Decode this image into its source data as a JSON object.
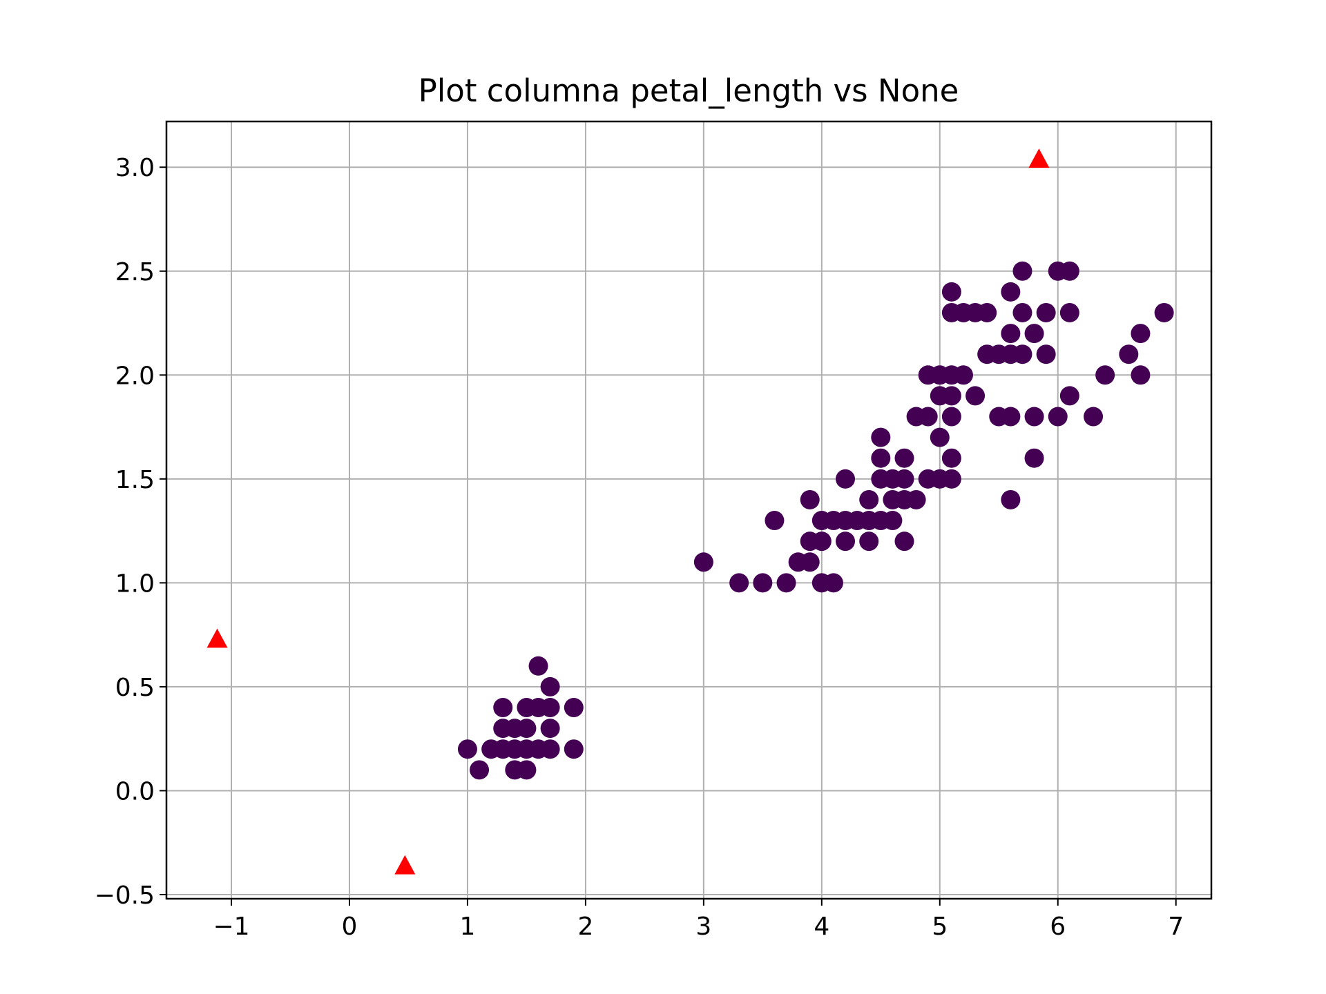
{
  "chart_data": {
    "type": "scatter",
    "title": "Plot columna petal_length vs None",
    "xlabel": "",
    "ylabel": "",
    "xlim": [
      -1.55,
      7.3
    ],
    "ylim": [
      -0.52,
      3.22
    ],
    "x_ticks": [
      -1,
      0,
      1,
      2,
      3,
      4,
      5,
      6,
      7
    ],
    "x_tick_labels": [
      "−1",
      "0",
      "1",
      "2",
      "3",
      "4",
      "5",
      "6",
      "7"
    ],
    "y_ticks": [
      -0.5,
      0.0,
      0.5,
      1.0,
      1.5,
      2.0,
      2.5,
      3.0
    ],
    "y_tick_labels": [
      "−0.5",
      "0.0",
      "0.5",
      "1.0",
      "1.5",
      "2.0",
      "2.5",
      "3.0"
    ],
    "grid": true,
    "series": [
      {
        "marker": "circle",
        "color": "#440154",
        "points": [
          [
            1.0,
            0.2
          ],
          [
            1.1,
            0.1
          ],
          [
            1.2,
            0.2
          ],
          [
            1.3,
            0.2
          ],
          [
            1.3,
            0.3
          ],
          [
            1.3,
            0.4
          ],
          [
            1.4,
            0.2
          ],
          [
            1.4,
            0.3
          ],
          [
            1.4,
            0.1
          ],
          [
            1.5,
            0.2
          ],
          [
            1.5,
            0.1
          ],
          [
            1.5,
            0.3
          ],
          [
            1.5,
            0.4
          ],
          [
            1.6,
            0.2
          ],
          [
            1.6,
            0.4
          ],
          [
            1.6,
            0.6
          ],
          [
            1.7,
            0.2
          ],
          [
            1.7,
            0.3
          ],
          [
            1.7,
            0.4
          ],
          [
            1.7,
            0.5
          ],
          [
            1.9,
            0.2
          ],
          [
            1.9,
            0.4
          ],
          [
            3.0,
            1.1
          ],
          [
            3.3,
            1.0
          ],
          [
            3.5,
            1.0
          ],
          [
            3.6,
            1.3
          ],
          [
            3.7,
            1.0
          ],
          [
            3.8,
            1.1
          ],
          [
            3.9,
            1.1
          ],
          [
            3.9,
            1.2
          ],
          [
            3.9,
            1.4
          ],
          [
            4.0,
            1.0
          ],
          [
            4.0,
            1.2
          ],
          [
            4.0,
            1.3
          ],
          [
            4.1,
            1.0
          ],
          [
            4.1,
            1.3
          ],
          [
            4.2,
            1.2
          ],
          [
            4.2,
            1.3
          ],
          [
            4.2,
            1.5
          ],
          [
            4.3,
            1.3
          ],
          [
            4.4,
            1.2
          ],
          [
            4.4,
            1.3
          ],
          [
            4.4,
            1.4
          ],
          [
            4.5,
            1.3
          ],
          [
            4.5,
            1.5
          ],
          [
            4.5,
            1.6
          ],
          [
            4.5,
            1.7
          ],
          [
            4.6,
            1.3
          ],
          [
            4.6,
            1.4
          ],
          [
            4.6,
            1.5
          ],
          [
            4.7,
            1.2
          ],
          [
            4.7,
            1.4
          ],
          [
            4.7,
            1.5
          ],
          [
            4.7,
            1.6
          ],
          [
            4.8,
            1.4
          ],
          [
            4.8,
            1.8
          ],
          [
            4.9,
            1.5
          ],
          [
            4.9,
            1.8
          ],
          [
            4.9,
            2.0
          ],
          [
            5.0,
            1.5
          ],
          [
            5.0,
            1.7
          ],
          [
            5.0,
            1.9
          ],
          [
            5.0,
            2.0
          ],
          [
            5.1,
            1.5
          ],
          [
            5.1,
            1.6
          ],
          [
            5.1,
            1.8
          ],
          [
            5.1,
            1.9
          ],
          [
            5.1,
            2.0
          ],
          [
            5.1,
            2.3
          ],
          [
            5.1,
            2.4
          ],
          [
            5.2,
            2.0
          ],
          [
            5.2,
            2.3
          ],
          [
            5.3,
            1.9
          ],
          [
            5.3,
            2.3
          ],
          [
            5.4,
            2.1
          ],
          [
            5.4,
            2.3
          ],
          [
            5.5,
            1.8
          ],
          [
            5.5,
            2.1
          ],
          [
            5.6,
            1.4
          ],
          [
            5.6,
            1.8
          ],
          [
            5.6,
            2.1
          ],
          [
            5.6,
            2.2
          ],
          [
            5.6,
            2.4
          ],
          [
            5.7,
            2.1
          ],
          [
            5.7,
            2.3
          ],
          [
            5.7,
            2.5
          ],
          [
            5.8,
            1.6
          ],
          [
            5.8,
            1.8
          ],
          [
            5.8,
            2.2
          ],
          [
            5.9,
            2.1
          ],
          [
            5.9,
            2.3
          ],
          [
            6.0,
            1.8
          ],
          [
            6.0,
            2.5
          ],
          [
            6.1,
            1.9
          ],
          [
            6.1,
            2.3
          ],
          [
            6.1,
            2.5
          ],
          [
            6.3,
            1.8
          ],
          [
            6.4,
            2.0
          ],
          [
            6.6,
            2.1
          ],
          [
            6.7,
            2.0
          ],
          [
            6.7,
            2.2
          ],
          [
            6.9,
            2.3
          ]
        ]
      },
      {
        "marker": "triangle",
        "color": "#ff0000",
        "points": [
          [
            -1.12,
            0.73
          ],
          [
            0.47,
            -0.36
          ],
          [
            5.84,
            3.04
          ]
        ]
      }
    ]
  }
}
